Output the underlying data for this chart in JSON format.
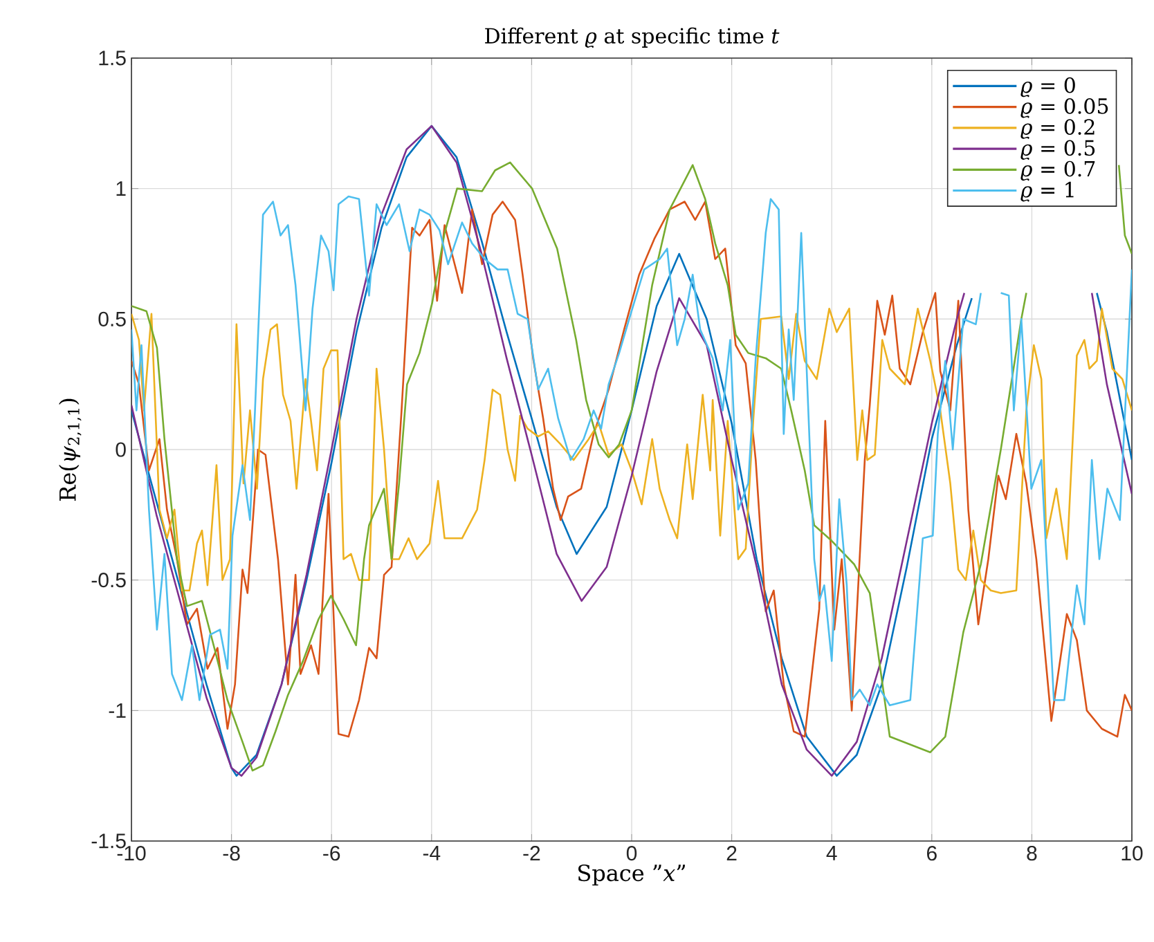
{
  "chart_data": {
    "type": "line",
    "title": "Different *ϱ* at specific time *t*",
    "xlabel": "Space ”*x*”",
    "ylabel": "Re(*ψ*$_{2,1,1}$)",
    "xlim": [
      -10,
      10
    ],
    "ylim": [
      -1.5,
      1.5
    ],
    "xticks": [
      -10,
      -8,
      -6,
      -4,
      -2,
      0,
      2,
      4,
      6,
      8,
      10
    ],
    "yticks": [
      -1.5,
      -1,
      -0.5,
      0,
      0.5,
      1,
      1.5
    ],
    "grid": true,
    "legend": "top right",
    "series": [
      {
        "name": "*ϱ* = 0",
        "color": "#0072bd",
        "x": [
          -10,
          -9.5,
          -9,
          -8.5,
          -8,
          -7.9,
          -7.5,
          -7,
          -6.5,
          -6,
          -5.5,
          -5,
          -4.5,
          -4,
          -3.5,
          -3,
          -2.5,
          -2,
          -1.5,
          -1.1,
          -0.5,
          0,
          0.5,
          0.95,
          1.5,
          2,
          2.5,
          3,
          3.5,
          4.1,
          4.5,
          5,
          5.5,
          6,
          6.5,
          6.8,
          7,
          7.5,
          8,
          8.5,
          9,
          9.3,
          9.5,
          10
        ],
        "values": [
          0.15,
          -0.2,
          -0.55,
          -0.9,
          -1.22,
          -1.25,
          -1.17,
          -0.9,
          -0.5,
          -0.05,
          0.45,
          0.85,
          1.12,
          1.24,
          1.12,
          0.8,
          0.45,
          0.12,
          -0.22,
          -0.4,
          -0.22,
          0.15,
          0.55,
          0.75,
          0.5,
          0.1,
          -0.42,
          -0.8,
          -1.1,
          -1.25,
          -1.17,
          -0.9,
          -0.45,
          0.04,
          0.4,
          0.58,
          null,
          null,
          null,
          null,
          null,
          0.6,
          0.45,
          -0.04
        ]
      },
      {
        "name": "*ϱ* = 0.05",
        "color": "#d95319",
        "x": [
          -10,
          -9.85,
          -9.65,
          -9.44,
          -9.29,
          -9.09,
          -8.89,
          -8.69,
          -8.48,
          -8.28,
          -8.08,
          -7.93,
          -7.78,
          -7.68,
          -7.58,
          -7.47,
          -7.32,
          -7.07,
          -6.87,
          -6.72,
          -6.62,
          -6.41,
          -6.26,
          -6.06,
          -5.86,
          -5.66,
          -5.45,
          -5.25,
          -5.1,
          -4.95,
          -4.8,
          -4.6,
          -4.39,
          -4.24,
          -4.04,
          -3.89,
          -3.74,
          -3.39,
          -3.19,
          -2.99,
          -2.78,
          -2.58,
          -2.33,
          -2.18,
          -1.97,
          -1.77,
          -1.57,
          -1.42,
          -1.27,
          -1.01,
          -0.76,
          -0.46,
          -0.15,
          0.15,
          0.46,
          0.76,
          1.06,
          1.27,
          1.47,
          1.67,
          1.87,
          2.08,
          2.28,
          2.48,
          2.68,
          2.84,
          3.04,
          3.24,
          3.46,
          3.75,
          3.87,
          4.05,
          4.2,
          4.4,
          4.66,
          4.76,
          4.91,
          5.06,
          5.21,
          5.36,
          5.57,
          5.82,
          6.07,
          6.17,
          6.37,
          6.53,
          6.73,
          6.93,
          7.13,
          7.33,
          7.48,
          7.69,
          7.89,
          8.09,
          8.39,
          8.7,
          8.9,
          9.1,
          9.4,
          9.71,
          9.86,
          10
        ],
        "values": [
          0.34,
          0.25,
          -0.08,
          0.04,
          -0.23,
          -0.42,
          -0.67,
          -0.61,
          -0.84,
          -0.76,
          -1.07,
          -0.9,
          -0.46,
          -0.55,
          -0.29,
          0.0,
          -0.02,
          -0.42,
          -0.9,
          -0.48,
          -0.86,
          -0.75,
          -0.86,
          -0.17,
          -1.09,
          -1.1,
          -0.96,
          -0.76,
          -0.8,
          -0.48,
          -0.45,
          0.15,
          0.85,
          0.82,
          0.88,
          0.57,
          0.86,
          0.6,
          0.92,
          0.71,
          0.9,
          0.95,
          0.88,
          0.67,
          0.35,
          0.12,
          -0.15,
          -0.27,
          -0.18,
          -0.15,
          0.06,
          0.23,
          0.46,
          0.67,
          0.81,
          0.92,
          0.95,
          0.88,
          0.95,
          0.73,
          0.77,
          0.4,
          0.33,
          -0.04,
          -0.62,
          -0.54,
          -0.9,
          -1.08,
          -1.1,
          -0.61,
          0.11,
          -0.69,
          -0.42,
          -1.0,
          -0.04,
          0.17,
          0.57,
          0.44,
          0.59,
          0.31,
          0.25,
          0.45,
          0.6,
          0.3,
          0.15,
          0.57,
          -0.23,
          -0.67,
          -0.42,
          -0.1,
          -0.19,
          0.06,
          -0.13,
          -0.42,
          -1.04,
          -0.63,
          -0.73,
          -1.0,
          -1.07,
          -1.1,
          -0.94,
          -1.0
        ]
      },
      {
        "name": "*ϱ* = 0.2",
        "color": "#edb120",
        "x": [
          -10,
          -9.85,
          -9.75,
          -9.6,
          -9.44,
          -9.29,
          -9.14,
          -8.99,
          -8.84,
          -8.69,
          -8.59,
          -8.48,
          -8.3,
          -8.18,
          -8.03,
          -7.9,
          -7.76,
          -7.63,
          -7.49,
          -7.37,
          -7.22,
          -7.09,
          -6.97,
          -6.82,
          -6.7,
          -6.52,
          -6.41,
          -6.29,
          -6.16,
          -6.01,
          -5.88,
          -5.76,
          -5.61,
          -5.45,
          -5.25,
          -5.1,
          -4.95,
          -4.8,
          -4.65,
          -4.46,
          -4.29,
          -4.04,
          -3.87,
          -3.74,
          -3.39,
          -3.09,
          -2.94,
          -2.78,
          -2.63,
          -2.48,
          -2.33,
          -2.23,
          -2.08,
          -1.87,
          -1.67,
          -1.42,
          -1.16,
          -0.86,
          -0.66,
          -0.46,
          -0.2,
          0,
          0.2,
          0.41,
          0.56,
          0.76,
          0.91,
          1.11,
          1.22,
          1.42,
          1.57,
          1.62,
          1.77,
          1.92,
          2.13,
          2.28,
          2.43,
          2.58,
          2.99,
          3.14,
          3.29,
          3.46,
          3.7,
          3.95,
          4.1,
          4.35,
          4.51,
          4.61,
          4.71,
          4.86,
          5.01,
          5.16,
          5.46,
          5.72,
          5.97,
          6.17,
          6.37,
          6.53,
          6.68,
          6.83,
          6.98,
          7.18,
          7.38,
          7.69,
          7.89,
          8.04,
          8.19,
          8.29,
          8.49,
          8.7,
          8.9,
          9.05,
          9.15,
          9.3,
          9.4,
          9.61,
          9.81,
          10
        ],
        "values": [
          0.52,
          0.42,
          0.15,
          0.52,
          -0.23,
          -0.34,
          -0.23,
          -0.54,
          -0.54,
          -0.36,
          -0.31,
          -0.52,
          -0.06,
          -0.5,
          -0.42,
          0.48,
          -0.13,
          0.15,
          -0.15,
          0.27,
          0.46,
          0.48,
          0.21,
          0.11,
          -0.15,
          0.27,
          0.11,
          -0.08,
          0.31,
          0.38,
          0.38,
          -0.42,
          -0.4,
          -0.5,
          -0.5,
          0.31,
          0.0,
          -0.42,
          -0.42,
          -0.34,
          -0.42,
          -0.36,
          -0.12,
          -0.34,
          -0.34,
          -0.23,
          -0.04,
          0.23,
          0.21,
          0.0,
          -0.12,
          0.13,
          0.08,
          0.05,
          0.07,
          0.02,
          -0.04,
          0.04,
          0.1,
          -0.02,
          0.02,
          -0.08,
          -0.21,
          0.04,
          -0.15,
          -0.27,
          -0.34,
          0.02,
          -0.19,
          0.21,
          -0.08,
          0.19,
          -0.33,
          0.11,
          -0.42,
          -0.38,
          0.11,
          0.5,
          0.51,
          0.27,
          0.52,
          0.34,
          0.27,
          0.54,
          0.45,
          0.54,
          -0.04,
          0.15,
          -0.04,
          -0.02,
          0.42,
          0.31,
          0.25,
          0.54,
          0.34,
          0.15,
          -0.13,
          -0.46,
          -0.5,
          -0.31,
          -0.5,
          -0.54,
          -0.55,
          -0.54,
          0.15,
          0.4,
          0.27,
          -0.34,
          -0.15,
          -0.42,
          0.36,
          0.42,
          0.31,
          0.34,
          0.54,
          0.31,
          0.27,
          0.15
        ]
      },
      {
        "name": "*ϱ* = 0.5",
        "color": "#7e2f8e",
        "x": [
          -10,
          -9.5,
          -9,
          -8.5,
          -8,
          -7.8,
          -7.5,
          -7,
          -6.5,
          -6,
          -5.5,
          -5,
          -4.5,
          -4,
          -3.5,
          -3,
          -2.5,
          -2,
          -1.5,
          -1,
          -0.5,
          0,
          0.5,
          0.95,
          1.5,
          2,
          2.5,
          3,
          3.5,
          4,
          4.5,
          5,
          5.5,
          6,
          6.5,
          6.65,
          7,
          8,
          9,
          9.2,
          9.5,
          10
        ],
        "values": [
          0.17,
          -0.25,
          -0.6,
          -0.95,
          -1.22,
          -1.25,
          -1.18,
          -0.9,
          -0.48,
          0.0,
          0.5,
          0.9,
          1.15,
          1.24,
          1.1,
          0.75,
          0.35,
          -0.02,
          -0.4,
          -0.58,
          -0.45,
          -0.1,
          0.3,
          0.58,
          0.4,
          -0.04,
          -0.45,
          -0.9,
          -1.15,
          -1.25,
          -1.12,
          -0.8,
          -0.35,
          0.1,
          0.5,
          0.6,
          null,
          null,
          null,
          0.6,
          0.25,
          -0.17
        ]
      },
      {
        "name": "*ϱ* = 0.7",
        "color": "#77ac30",
        "x": [
          -10,
          -9.7,
          -9.49,
          -9.34,
          -9.09,
          -8.89,
          -8.59,
          -8.33,
          -8.08,
          -7.78,
          -7.58,
          -7.37,
          -7.12,
          -6.87,
          -6.57,
          -6.26,
          -6.01,
          -5.76,
          -5.51,
          -5.35,
          -5.25,
          -4.95,
          -4.8,
          -4.65,
          -4.49,
          -4.24,
          -3.99,
          -3.74,
          -3.49,
          -2.99,
          -2.73,
          -2.43,
          -1.99,
          -1.49,
          -1.11,
          -0.91,
          -0.66,
          -0.46,
          -0.25,
          0,
          0.41,
          0.76,
          1.22,
          1.47,
          1.67,
          1.92,
          2.08,
          2.33,
          2.68,
          2.99,
          3.19,
          3.46,
          3.65,
          4,
          4.45,
          4.76,
          5.16,
          5.97,
          6.27,
          6.63,
          6.98,
          7.38,
          7.79,
          7.89,
          8.5,
          9.74,
          9.86,
          10
        ],
        "values": [
          0.55,
          0.53,
          0.39,
          0.04,
          -0.42,
          -0.6,
          -0.58,
          -0.77,
          -0.96,
          -1.12,
          -1.23,
          -1.21,
          -1.08,
          -0.94,
          -0.81,
          -0.65,
          -0.56,
          -0.65,
          -0.75,
          -0.42,
          -0.29,
          -0.15,
          -0.42,
          -0.13,
          0.25,
          0.37,
          0.56,
          0.83,
          1.0,
          0.99,
          1.07,
          1.1,
          1.0,
          0.77,
          0.42,
          0.19,
          0.02,
          -0.03,
          0.02,
          0.15,
          0.63,
          0.92,
          1.09,
          0.96,
          0.79,
          0.63,
          0.44,
          0.37,
          0.35,
          0.31,
          0.15,
          -0.08,
          -0.29,
          -0.35,
          -0.44,
          -0.55,
          -1.1,
          -1.16,
          -1.1,
          -0.7,
          -0.44,
          0.0,
          0.5,
          0.6,
          null,
          1.09,
          0.82,
          0.75
        ]
      },
      {
        "name": "*ϱ* = 1",
        "color": "#4dbeee",
        "x": [
          -10,
          -9.9,
          -9.8,
          -9.65,
          -9.49,
          -9.34,
          -9.19,
          -8.99,
          -8.79,
          -8.64,
          -8.43,
          -8.23,
          -8.08,
          -7.98,
          -7.78,
          -7.63,
          -7.53,
          -7.37,
          -7.17,
          -7.02,
          -6.87,
          -6.72,
          -6.52,
          -6.38,
          -6.21,
          -6.06,
          -5.96,
          -5.86,
          -5.66,
          -5.45,
          -5.25,
          -5.1,
          -4.9,
          -4.65,
          -4.44,
          -4.24,
          -4.04,
          -3.84,
          -3.67,
          -3.39,
          -3.19,
          -2.94,
          -2.68,
          -2.48,
          -2.28,
          -2.08,
          -1.87,
          -1.67,
          -1.47,
          -1.22,
          -0.96,
          -0.76,
          -0.61,
          -0.46,
          -0.25,
          -0.05,
          0.25,
          0.56,
          0.71,
          0.91,
          1.06,
          1.22,
          1.37,
          1.62,
          1.82,
          1.97,
          2.13,
          2.33,
          2.48,
          2.68,
          2.78,
          2.94,
          3.04,
          3.14,
          3.24,
          3.39,
          3.65,
          3.75,
          3.85,
          4,
          4.15,
          4.3,
          4.4,
          4.56,
          4.76,
          4.91,
          5.16,
          5.57,
          5.82,
          6.02,
          6.12,
          6.27,
          6.42,
          6.63,
          6.88,
          6.98,
          7.18,
          7.38,
          7.54,
          7.64,
          7.79,
          7.99,
          8.19,
          8.44,
          8.65,
          8.9,
          9.05,
          9.2,
          9.35,
          9.51,
          9.76,
          10
        ],
        "values": [
          0.46,
          0.15,
          0.4,
          -0.23,
          -0.69,
          -0.4,
          -0.86,
          -0.96,
          -0.75,
          -0.96,
          -0.71,
          -0.69,
          -0.84,
          -0.33,
          -0.06,
          -0.27,
          0.15,
          0.9,
          0.95,
          0.82,
          0.86,
          0.63,
          0.15,
          0.54,
          0.82,
          0.76,
          0.61,
          0.94,
          0.97,
          0.96,
          0.59,
          0.94,
          0.86,
          0.94,
          0.76,
          0.92,
          0.9,
          0.84,
          0.71,
          0.87,
          0.79,
          0.73,
          0.69,
          0.69,
          0.52,
          0.5,
          0.23,
          0.31,
          0.12,
          -0.04,
          0.04,
          0.15,
          0.08,
          0.25,
          0.37,
          0.5,
          0.69,
          0.73,
          0.77,
          0.4,
          0.5,
          0.67,
          0.46,
          0.35,
          0.15,
          0.42,
          -0.23,
          -0.13,
          0.35,
          0.83,
          0.96,
          0.92,
          0.06,
          0.46,
          0.19,
          0.83,
          -0.42,
          -0.58,
          -0.52,
          -0.81,
          -0.19,
          -0.52,
          -0.96,
          -0.92,
          -0.98,
          -0.9,
          -0.98,
          -0.96,
          -0.34,
          -0.33,
          0.06,
          0.34,
          0.0,
          0.5,
          0.48,
          0.6,
          null,
          0.6,
          0.59,
          0.15,
          0.5,
          -0.15,
          -0.04,
          -0.96,
          -0.96,
          -0.52,
          -0.67,
          -0.04,
          -0.42,
          -0.15,
          -0.27,
          0.69
        ]
      }
    ]
  }
}
